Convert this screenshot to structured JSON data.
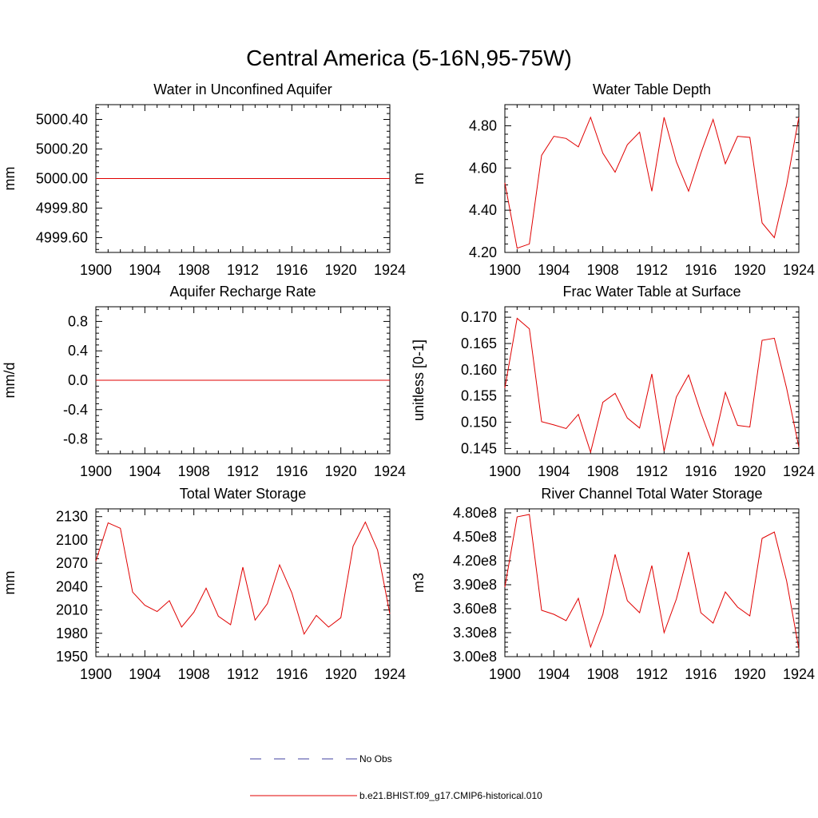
{
  "title": "Central America (5-16N,95-75W)",
  "legend": {
    "obs_label": "No Obs",
    "model_label": "b.e21.BHIST.f09_g17.CMIP6-historical.010",
    "obs_color": "#4040a0",
    "model_color": "#e00000"
  },
  "chart_data": [
    {
      "type": "line",
      "title": "Water in Unconfined Aquifer",
      "ylabel": "mm",
      "xlim": [
        1900,
        1924
      ],
      "ylim": [
        4999.5,
        5000.5
      ],
      "xticks": [
        1900,
        1904,
        1908,
        1912,
        1916,
        1920,
        1924
      ],
      "yticks": [
        4999.6,
        4999.8,
        5000.0,
        5000.2,
        5000.4
      ],
      "ytick_labels": [
        "4999.60",
        "4999.80",
        "5000.00",
        "5000.20",
        "5000.40"
      ],
      "x": [
        1900,
        1901,
        1902,
        1903,
        1904,
        1905,
        1906,
        1907,
        1908,
        1909,
        1910,
        1911,
        1912,
        1913,
        1914,
        1915,
        1916,
        1917,
        1918,
        1919,
        1920,
        1921,
        1922,
        1923,
        1924
      ],
      "series": [
        {
          "name": "b.e21.BHIST.f09_g17.CMIP6-historical.010",
          "values": [
            5000,
            5000,
            5000,
            5000,
            5000,
            5000,
            5000,
            5000,
            5000,
            5000,
            5000,
            5000,
            5000,
            5000,
            5000,
            5000,
            5000,
            5000,
            5000,
            5000,
            5000,
            5000,
            5000,
            5000,
            5000
          ]
        }
      ]
    },
    {
      "type": "line",
      "title": "Water Table Depth",
      "ylabel": "m",
      "xlim": [
        1900,
        1924
      ],
      "ylim": [
        4.2,
        4.9
      ],
      "xticks": [
        1900,
        1904,
        1908,
        1912,
        1916,
        1920,
        1924
      ],
      "yticks": [
        4.2,
        4.4,
        4.6,
        4.8
      ],
      "ytick_labels": [
        "4.20",
        "4.40",
        "4.60",
        "4.80"
      ],
      "x": [
        1900,
        1901,
        1902,
        1903,
        1904,
        1905,
        1906,
        1907,
        1908,
        1909,
        1910,
        1911,
        1912,
        1913,
        1914,
        1915,
        1916,
        1917,
        1918,
        1919,
        1920,
        1921,
        1922,
        1923,
        1924
      ],
      "series": [
        {
          "name": "b.e21.BHIST.f09_g17.CMIP6-historical.010",
          "values": [
            4.53,
            4.22,
            4.24,
            4.66,
            4.75,
            4.74,
            4.7,
            4.84,
            4.67,
            4.58,
            4.71,
            4.77,
            4.49,
            4.84,
            4.63,
            4.49,
            4.67,
            4.83,
            4.62,
            4.75,
            4.745,
            4.34,
            4.27,
            4.52,
            4.84
          ]
        }
      ]
    },
    {
      "type": "line",
      "title": "Aquifer Recharge Rate",
      "ylabel": "mm/d",
      "xlim": [
        1900,
        1924
      ],
      "ylim": [
        -1.0,
        1.0
      ],
      "xticks": [
        1900,
        1904,
        1908,
        1912,
        1916,
        1920,
        1924
      ],
      "yticks": [
        -0.8,
        -0.4,
        0.0,
        0.4,
        0.8
      ],
      "ytick_labels": [
        "-0.8",
        "-0.4",
        "0.0",
        "0.4",
        "0.8"
      ],
      "x": [
        1900,
        1901,
        1902,
        1903,
        1904,
        1905,
        1906,
        1907,
        1908,
        1909,
        1910,
        1911,
        1912,
        1913,
        1914,
        1915,
        1916,
        1917,
        1918,
        1919,
        1920,
        1921,
        1922,
        1923,
        1924
      ],
      "series": [
        {
          "name": "b.e21.BHIST.f09_g17.CMIP6-historical.010",
          "values": [
            0,
            0,
            0,
            0,
            0,
            0,
            0,
            0,
            0,
            0,
            0,
            0,
            0,
            0,
            0,
            0,
            0,
            0,
            0,
            0,
            0,
            0,
            0,
            0,
            0
          ]
        }
      ]
    },
    {
      "type": "line",
      "title": "Frac Water Table at Surface",
      "ylabel": "unitless [0-1]",
      "xlim": [
        1900,
        1924
      ],
      "ylim": [
        0.144,
        0.172
      ],
      "xticks": [
        1900,
        1904,
        1908,
        1912,
        1916,
        1920,
        1924
      ],
      "yticks": [
        0.145,
        0.15,
        0.155,
        0.16,
        0.165,
        0.17
      ],
      "ytick_labels": [
        "0.145",
        "0.150",
        "0.155",
        "0.160",
        "0.165",
        "0.170"
      ],
      "x": [
        1900,
        1901,
        1902,
        1903,
        1904,
        1905,
        1906,
        1907,
        1908,
        1909,
        1910,
        1911,
        1912,
        1913,
        1914,
        1915,
        1916,
        1917,
        1918,
        1919,
        1920,
        1921,
        1922,
        1923,
        1924
      ],
      "series": [
        {
          "name": "b.e21.BHIST.f09_g17.CMIP6-historical.010",
          "values": [
            0.1565,
            0.1698,
            0.1678,
            0.1501,
            0.1495,
            0.1488,
            0.1515,
            0.1443,
            0.1538,
            0.1555,
            0.1508,
            0.1489,
            0.1592,
            0.1445,
            0.1548,
            0.159,
            0.1518,
            0.1455,
            0.1557,
            0.1494,
            0.1491,
            0.1656,
            0.166,
            0.1565,
            0.1453
          ]
        }
      ]
    },
    {
      "type": "line",
      "title": "Total Water Storage",
      "ylabel": "mm",
      "xlim": [
        1900,
        1924
      ],
      "ylim": [
        1950,
        2140
      ],
      "xticks": [
        1900,
        1904,
        1908,
        1912,
        1916,
        1920,
        1924
      ],
      "yticks": [
        1950,
        1980,
        2010,
        2040,
        2070,
        2100,
        2130
      ],
      "ytick_labels": [
        "1950",
        "1980",
        "2010",
        "2040",
        "2070",
        "2100",
        "2130"
      ],
      "x": [
        1900,
        1901,
        1902,
        1903,
        1904,
        1905,
        1906,
        1907,
        1908,
        1909,
        1910,
        1911,
        1912,
        1913,
        1914,
        1915,
        1916,
        1917,
        1918,
        1919,
        1920,
        1921,
        1922,
        1923,
        1924
      ],
      "series": [
        {
          "name": "b.e21.BHIST.f09_g17.CMIP6-historical.010",
          "values": [
            2073,
            2122,
            2115,
            2033,
            2016,
            2008,
            2022,
            1988,
            2007,
            2038,
            2002,
            1991,
            2065,
            1997,
            2018,
            2068,
            2032,
            1979,
            2003,
            1988,
            2000,
            2092,
            2123,
            2087,
            2005
          ]
        }
      ]
    },
    {
      "type": "line",
      "title": "River Channel Total Water Storage",
      "ylabel": "m3",
      "xlim": [
        1900,
        1924
      ],
      "ylim": [
        300000000.0,
        485000000.0
      ],
      "xticks": [
        1900,
        1904,
        1908,
        1912,
        1916,
        1920,
        1924
      ],
      "yticks": [
        300000000.0,
        330000000.0,
        360000000.0,
        390000000.0,
        420000000.0,
        450000000.0,
        480000000.0
      ],
      "ytick_labels": [
        "3.00e8",
        "3.30e8",
        "3.60e8",
        "3.90e8",
        "4.20e8",
        "4.50e8",
        "4.80e8"
      ],
      "x": [
        1900,
        1901,
        1902,
        1903,
        1904,
        1905,
        1906,
        1907,
        1908,
        1909,
        1910,
        1911,
        1912,
        1913,
        1914,
        1915,
        1916,
        1917,
        1918,
        1919,
        1920,
        1921,
        1922,
        1923,
        1924
      ],
      "series": [
        {
          "name": "b.e21.BHIST.f09_g17.CMIP6-historical.010",
          "values": [
            387000000.0,
            475000000.0,
            478000000.0,
            358000000.0,
            353000000.0,
            345000000.0,
            373000000.0,
            312000000.0,
            353000000.0,
            428000000.0,
            370000000.0,
            355000000.0,
            414000000.0,
            330000000.0,
            372000000.0,
            431000000.0,
            355000000.0,
            342000000.0,
            381000000.0,
            362000000.0,
            351000000.0,
            448000000.0,
            456000000.0,
            395000000.0,
            310000000.0
          ]
        }
      ]
    }
  ]
}
